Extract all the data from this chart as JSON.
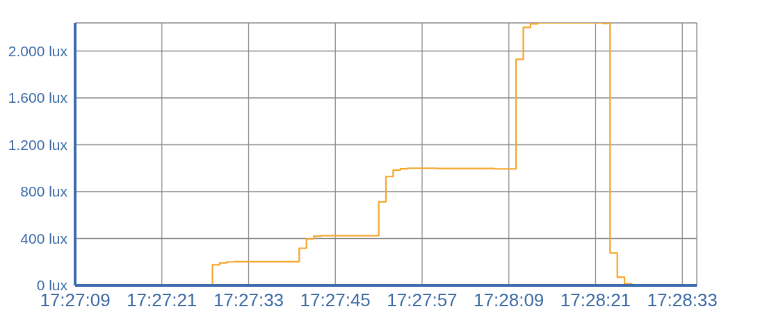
{
  "chart_data": {
    "type": "step",
    "color": "#f5a62b",
    "marker": "none",
    "grid": true,
    "x": [
      17.4525,
      17.457778,
      17.458056,
      17.458333,
      17.458611,
      17.461111,
      17.461389,
      17.461667,
      17.461944,
      17.464167,
      17.464444,
      17.464722,
      17.465,
      17.465278,
      17.466389,
      17.468611,
      17.469444,
      17.469722,
      17.47,
      17.470278,
      17.472778,
      17.473056,
      17.473333,
      17.473611,
      17.473889,
      17.476389
    ],
    "values": [
      0,
      175,
      192,
      200,
      202,
      317,
      396,
      420,
      425,
      713,
      929,
      984,
      995,
      1000,
      998,
      994,
      1930,
      2202,
      2232,
      2240,
      2235,
      276,
      70,
      14,
      0,
      0
    ],
    "xlim": [
      17.4525,
      17.476389
    ],
    "xticks": [
      {
        "value": 17.4525,
        "label": "17:27:09"
      },
      {
        "value": 17.455833,
        "label": "17:27:21"
      },
      {
        "value": 17.459167,
        "label": "17:27:33"
      },
      {
        "value": 17.4625,
        "label": "17:27:45"
      },
      {
        "value": 17.465833,
        "label": "17:27:57"
      },
      {
        "value": 17.469167,
        "label": "17:28:09"
      },
      {
        "value": 17.4725,
        "label": "17:28:21"
      },
      {
        "value": 17.475833,
        "label": "17:28:33"
      }
    ],
    "ylim": [
      0,
      2240
    ],
    "yticks": [
      {
        "value": 0,
        "label": "0 lux"
      },
      {
        "value": 400,
        "label": "400 lux"
      },
      {
        "value": 800,
        "label": "800 lux"
      },
      {
        "value": 1200,
        "label": "1.200 lux"
      },
      {
        "value": 1600,
        "label": "1.600 lux"
      },
      {
        "value": 2000,
        "label": "2.000 lux"
      }
    ]
  }
}
